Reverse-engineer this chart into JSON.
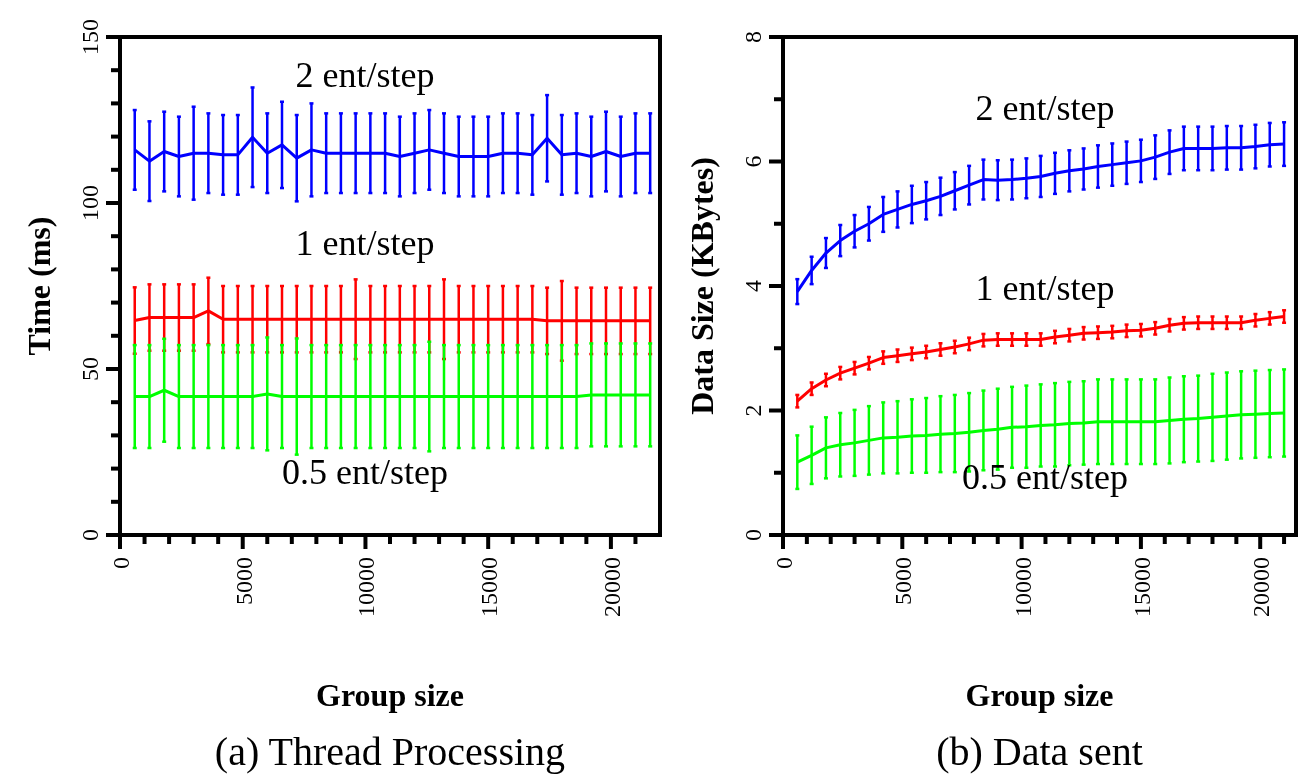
{
  "chart_data": [
    {
      "type": "line",
      "title": "(a) Thread Processing",
      "xlabel": "Group size",
      "ylabel": "Time (ms)",
      "x": [
        600,
        1200,
        1800,
        2400,
        3000,
        3600,
        4200,
        4800,
        5400,
        6000,
        6600,
        7200,
        7800,
        8400,
        9000,
        9600,
        10200,
        10800,
        11400,
        12000,
        12600,
        13200,
        13800,
        14400,
        15000,
        15600,
        16200,
        16800,
        17400,
        18000,
        18600,
        19200,
        19800,
        20400,
        21000,
        21600
      ],
      "xlim": [
        0,
        22000
      ],
      "ylim": [
        0,
        150
      ],
      "xticks": [
        0,
        {
          "value": 1000,
          "label": null
        },
        {
          "value": 2000,
          "label": null
        },
        {
          "value": 3000,
          "label": null
        },
        {
          "value": 4000,
          "label": null
        },
        5000,
        {
          "value": 6000,
          "label": null
        },
        {
          "value": 7000,
          "label": null
        },
        {
          "value": 8000,
          "label": null
        },
        {
          "value": 9000,
          "label": null
        },
        10000,
        {
          "value": 11000,
          "label": null
        },
        {
          "value": 12000,
          "label": null
        },
        {
          "value": 13000,
          "label": null
        },
        {
          "value": 14000,
          "label": null
        },
        15000,
        {
          "value": 16000,
          "label": null
        },
        {
          "value": 17000,
          "label": null
        },
        {
          "value": 18000,
          "label": null
        },
        {
          "value": 19000,
          "label": null
        },
        20000,
        {
          "value": 21000,
          "label": null
        }
      ],
      "yticks": [
        0,
        {
          "value": 10,
          "label": null
        },
        {
          "value": 20,
          "label": null
        },
        {
          "value": 30,
          "label": null
        },
        {
          "value": 40,
          "label": null
        },
        50,
        {
          "value": 60,
          "label": null
        },
        {
          "value": 70,
          "label": null
        },
        {
          "value": 80,
          "label": null
        },
        {
          "value": 90,
          "label": null
        },
        100,
        {
          "value": 110,
          "label": null
        },
        {
          "value": 120,
          "label": null
        },
        {
          "value": 130,
          "label": null
        },
        {
          "value": 140,
          "label": null
        },
        150
      ],
      "series": [
        {
          "name": "2 ent/step",
          "color": "#0000ff",
          "values": [
            116,
            112.6,
            115.5,
            114,
            115,
            115,
            114.5,
            114.5,
            119.8,
            115,
            117.5,
            113.5,
            116,
            115,
            115,
            115,
            115,
            115,
            114,
            115,
            116,
            115,
            114,
            114,
            114,
            115,
            115,
            114.5,
            119.5,
            114.5,
            115,
            114,
            115.5,
            114,
            115,
            115
          ],
          "errors": [
            12,
            12,
            12,
            12,
            14,
            12,
            12,
            12,
            15,
            12,
            13,
            13,
            14,
            12,
            12,
            12,
            12,
            12,
            12,
            12,
            12,
            12,
            12,
            12,
            12,
            12,
            12,
            12,
            13,
            12,
            12,
            12,
            12,
            12,
            12,
            12
          ]
        },
        {
          "name": "1 ent/step",
          "color": "#ff0000",
          "values": [
            64.6,
            65.5,
            65.5,
            65.5,
            65.5,
            67.5,
            65,
            65,
            65,
            65,
            65,
            65,
            65,
            65,
            65,
            65,
            65,
            65,
            65,
            65,
            65,
            65,
            65,
            65,
            65,
            65,
            65,
            65,
            64.5,
            64.5,
            64.5,
            64.5,
            64.5,
            64.5,
            64.5,
            64.5
          ],
          "errors": [
            10,
            10,
            10,
            10,
            10,
            10,
            10,
            10,
            10,
            10,
            10,
            10,
            10,
            10,
            10,
            12,
            10,
            10,
            10,
            10,
            10,
            12,
            10,
            10,
            10,
            10,
            10,
            10,
            10,
            12,
            10,
            10,
            10,
            10,
            10,
            10
          ]
        },
        {
          "name": "0.5 ent/step",
          "color": "#00ff00",
          "values": [
            41.7,
            41.7,
            43.6,
            41.7,
            41.7,
            41.7,
            41.7,
            41.7,
            41.7,
            42.5,
            41.7,
            41.7,
            41.7,
            41.7,
            41.7,
            41.7,
            41.7,
            41.7,
            41.7,
            41.7,
            41.7,
            41.7,
            41.7,
            41.7,
            41.7,
            41.7,
            41.7,
            41.7,
            41.7,
            41.7,
            41.7,
            42.2,
            42.2,
            42.2,
            42.2,
            42.2
          ],
          "errors": [
            15.5,
            15.5,
            15.5,
            15.5,
            15.5,
            15.5,
            15.5,
            15.5,
            15.5,
            17,
            15.5,
            17.5,
            15.5,
            15.5,
            15.5,
            15.5,
            15.5,
            15.5,
            15.5,
            15.5,
            16.5,
            15.5,
            15.5,
            15.5,
            15.5,
            15.5,
            15.5,
            15.5,
            15.5,
            15.5,
            15.5,
            15.5,
            15.5,
            15.5,
            15.5,
            15.5
          ]
        }
      ]
    },
    {
      "type": "line",
      "title": "(b) Data sent",
      "xlabel": "Group size",
      "ylabel": "Data Size (KBytes)",
      "x": [
        600,
        1200,
        1800,
        2400,
        3000,
        3600,
        4200,
        4800,
        5400,
        6000,
        6600,
        7200,
        7800,
        8400,
        9000,
        9600,
        10200,
        10800,
        11400,
        12000,
        12600,
        13200,
        13800,
        14400,
        15000,
        15600,
        16200,
        16800,
        17400,
        18000,
        18600,
        19200,
        19800,
        20400,
        21000
      ],
      "xlim": [
        0,
        21500
      ],
      "ylim": [
        0,
        8
      ],
      "xticks": [
        0,
        {
          "value": 1000,
          "label": null
        },
        {
          "value": 2000,
          "label": null
        },
        {
          "value": 3000,
          "label": null
        },
        {
          "value": 4000,
          "label": null
        },
        5000,
        {
          "value": 6000,
          "label": null
        },
        {
          "value": 7000,
          "label": null
        },
        {
          "value": 8000,
          "label": null
        },
        {
          "value": 9000,
          "label": null
        },
        10000,
        {
          "value": 11000,
          "label": null
        },
        {
          "value": 12000,
          "label": null
        },
        {
          "value": 13000,
          "label": null
        },
        {
          "value": 14000,
          "label": null
        },
        15000,
        {
          "value": 16000,
          "label": null
        },
        {
          "value": 17000,
          "label": null
        },
        {
          "value": 18000,
          "label": null
        },
        {
          "value": 19000,
          "label": null
        },
        20000,
        {
          "value": 21000,
          "label": null
        }
      ],
      "yticks": [
        0,
        {
          "value": 1,
          "label": null
        },
        2,
        {
          "value": 3,
          "label": null
        },
        4,
        {
          "value": 5,
          "label": null
        },
        6,
        {
          "value": 7,
          "label": null
        },
        8
      ],
      "series": [
        {
          "name": "2 ent/step",
          "color": "#0000ff",
          "values": [
            3.91,
            4.25,
            4.53,
            4.73,
            4.88,
            5.0,
            5.15,
            5.23,
            5.31,
            5.37,
            5.44,
            5.53,
            5.62,
            5.71,
            5.7,
            5.71,
            5.73,
            5.76,
            5.81,
            5.85,
            5.88,
            5.92,
            5.95,
            5.98,
            6.01,
            6.07,
            6.15,
            6.21,
            6.21,
            6.21,
            6.22,
            6.22,
            6.24,
            6.27,
            6.28
          ],
          "errors": [
            0.2,
            0.22,
            0.24,
            0.25,
            0.26,
            0.27,
            0.28,
            0.29,
            0.3,
            0.3,
            0.3,
            0.3,
            0.31,
            0.32,
            0.32,
            0.32,
            0.32,
            0.33,
            0.33,
            0.33,
            0.33,
            0.34,
            0.34,
            0.34,
            0.34,
            0.35,
            0.35,
            0.35,
            0.35,
            0.35,
            0.35,
            0.35,
            0.35,
            0.35,
            0.35
          ]
        },
        {
          "name": "1 ent/step",
          "color": "#ff0000",
          "values": [
            2.15,
            2.35,
            2.49,
            2.6,
            2.68,
            2.76,
            2.85,
            2.88,
            2.91,
            2.94,
            2.98,
            3.02,
            3.07,
            3.13,
            3.14,
            3.14,
            3.14,
            3.14,
            3.18,
            3.21,
            3.24,
            3.25,
            3.26,
            3.28,
            3.29,
            3.32,
            3.37,
            3.4,
            3.41,
            3.41,
            3.41,
            3.41,
            3.45,
            3.48,
            3.51
          ],
          "errors": [
            0.1,
            0.1,
            0.1,
            0.1,
            0.1,
            0.1,
            0.1,
            0.1,
            0.1,
            0.1,
            0.1,
            0.1,
            0.1,
            0.1,
            0.1,
            0.1,
            0.1,
            0.1,
            0.1,
            0.1,
            0.1,
            0.1,
            0.1,
            0.1,
            0.1,
            0.1,
            0.1,
            0.1,
            0.1,
            0.1,
            0.1,
            0.1,
            0.1,
            0.1,
            0.1
          ]
        },
        {
          "name": "0.5 ent/step",
          "color": "#00ff00",
          "values": [
            1.17,
            1.28,
            1.4,
            1.45,
            1.48,
            1.52,
            1.56,
            1.57,
            1.59,
            1.6,
            1.62,
            1.63,
            1.65,
            1.68,
            1.7,
            1.73,
            1.74,
            1.76,
            1.77,
            1.79,
            1.8,
            1.82,
            1.82,
            1.82,
            1.82,
            1.82,
            1.84,
            1.86,
            1.87,
            1.89,
            1.91,
            1.93,
            1.94,
            1.95,
            1.96
          ],
          "errors": [
            0.43,
            0.46,
            0.49,
            0.51,
            0.53,
            0.55,
            0.57,
            0.58,
            0.59,
            0.6,
            0.61,
            0.62,
            0.63,
            0.64,
            0.65,
            0.65,
            0.66,
            0.66,
            0.67,
            0.67,
            0.67,
            0.68,
            0.68,
            0.68,
            0.68,
            0.68,
            0.69,
            0.69,
            0.69,
            0.7,
            0.7,
            0.7,
            0.7,
            0.7,
            0.7
          ]
        }
      ]
    }
  ]
}
